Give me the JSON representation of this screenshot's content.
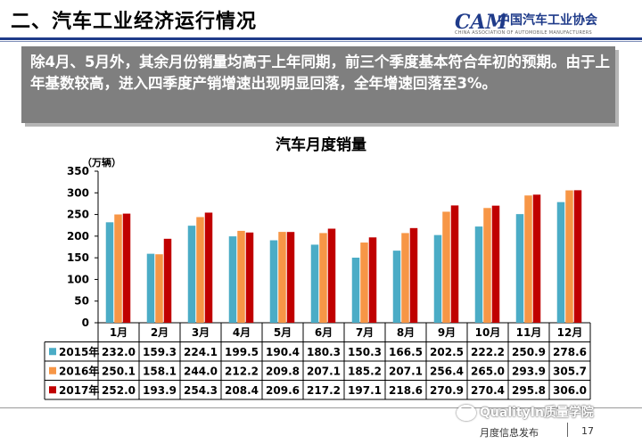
{
  "header": {
    "title": "二、汽车工业经济运行情况",
    "logo_mark": "CAM",
    "logo_cn": "中国汽车工业协会",
    "logo_en": "CHINA ASSOCIATION OF AUTOMOBILE MANUFACTURERS"
  },
  "callout": {
    "text": "除4月、5月外，其余月份销量均高于上年同期，前三个季度基本符合年初的预期。由于上年基数较高，进入四季度产销增速出现明显回落，全年增速回落至3%。"
  },
  "chart_data": {
    "type": "bar",
    "title": "汽车月度销量",
    "ylabel": "（万辆）",
    "ylim": [
      0,
      350
    ],
    "yticks": [
      0,
      50,
      100,
      150,
      200,
      250,
      300,
      350
    ],
    "categories": [
      "1月",
      "2月",
      "3月",
      "4月",
      "5月",
      "6月",
      "7月",
      "8月",
      "9月",
      "10月",
      "11月",
      "12月"
    ],
    "series": [
      {
        "name": "2015年",
        "color": "#4bacc6",
        "values": [
          232.0,
          159.3,
          224.1,
          199.5,
          190.4,
          180.3,
          150.3,
          166.5,
          202.5,
          222.2,
          250.9,
          278.6
        ]
      },
      {
        "name": "2016年",
        "color": "#f79646",
        "values": [
          250.1,
          158.1,
          244.0,
          212.2,
          209.8,
          207.1,
          185.2,
          207.1,
          256.4,
          265.0,
          293.9,
          305.7
        ]
      },
      {
        "name": "2017年",
        "color": "#c00000",
        "values": [
          252.0,
          193.9,
          254.3,
          208.4,
          209.6,
          217.2,
          197.1,
          218.6,
          270.9,
          270.4,
          295.8,
          306.0
        ]
      }
    ],
    "table_values": [
      [
        "232.0",
        "159.3",
        "224.1",
        "199.5",
        "190.4",
        "180.3",
        "150.3",
        "166.5",
        "202.5",
        "222.2",
        "250.9",
        "278.6"
      ],
      [
        "250.1",
        "158.1",
        "244.0",
        "212.2",
        "209.8",
        "207.1",
        "185.2",
        "207.1",
        "256.4",
        "265.0",
        "293.9",
        "305.7"
      ],
      [
        "252.0",
        "193.9",
        "254.3",
        "208.4",
        "209.6",
        "217.2",
        "197.1",
        "218.6",
        "270.9",
        "270.4",
        "295.8",
        "306.0"
      ]
    ]
  },
  "footer": {
    "watermark": "QualityIn质量学院",
    "release_label": "月度信息发布",
    "page_number": "17"
  }
}
